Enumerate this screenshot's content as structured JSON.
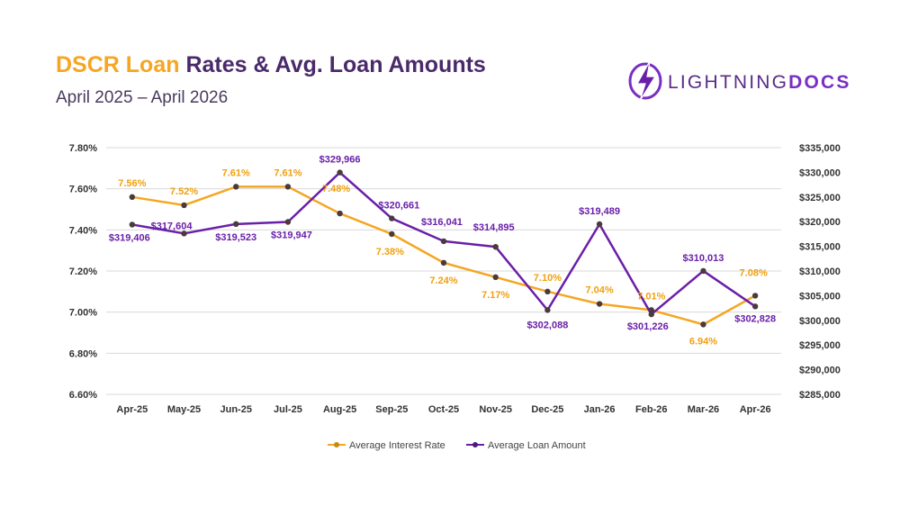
{
  "header": {
    "title_accent": "DSCR Loan",
    "title_rest": "Rates & Avg. Loan Amounts",
    "subtitle": "April 2025 – April 2026"
  },
  "logo": {
    "text_a": "LIGHTNING",
    "text_b": "DOCS",
    "icon": "lightning-bolt-icon"
  },
  "colors": {
    "accent": "#f5a623",
    "rate": "#f5a623",
    "loan": "#6a1fa8",
    "marker": "#4a3a3a"
  },
  "chart_data": {
    "type": "line",
    "categories": [
      "Apr-25",
      "May-25",
      "Jun-25",
      "Jul-25",
      "Aug-25",
      "Sep-25",
      "Oct-25",
      "Nov-25",
      "Dec-25",
      "Jan-26",
      "Feb-26",
      "Mar-26",
      "Apr-26"
    ],
    "series": [
      {
        "name": "Average Interest Rate",
        "axis": "left",
        "values": [
          7.56,
          7.52,
          7.61,
          7.61,
          7.48,
          7.38,
          7.24,
          7.17,
          7.1,
          7.04,
          7.01,
          6.94,
          7.08
        ],
        "labels": [
          "7.56%",
          "7.52%",
          "7.61%",
          "7.61%",
          "7.48%",
          "7.38%",
          "7.24%",
          "7.17%",
          "7.10%",
          "7.04%",
          "7.01%",
          "6.94%",
          "7.08%"
        ]
      },
      {
        "name": "Average Loan Amount",
        "axis": "right",
        "values": [
          319406,
          317604,
          319523,
          319947,
          329966,
          320661,
          316041,
          314895,
          302088,
          319489,
          301226,
          310013,
          302828
        ],
        "labels": [
          "$319,406",
          "$317,604",
          "$319,523",
          "$319,947",
          "$329,966",
          "$320,661",
          "$316,041",
          "$314,895",
          "$302,088",
          "$319,489",
          "$301,226",
          "$310,013",
          "$302,828"
        ]
      }
    ],
    "y_left": {
      "lim": [
        6.6,
        7.8
      ],
      "ticks": [
        6.6,
        6.8,
        7.0,
        7.2,
        7.4,
        7.6,
        7.8
      ],
      "tick_labels": [
        "6.60%",
        "6.80%",
        "7.00%",
        "7.20%",
        "7.40%",
        "7.60%",
        "7.80%"
      ]
    },
    "y_right": {
      "lim": [
        285000,
        335000
      ],
      "ticks": [
        285000,
        290000,
        295000,
        300000,
        305000,
        310000,
        315000,
        320000,
        325000,
        330000,
        335000
      ],
      "tick_labels": [
        "$285,000",
        "$290,000",
        "$295,000",
        "$300,000",
        "$305,000",
        "$310,000",
        "$315,000",
        "$320,000",
        "$325,000",
        "$330,000",
        "$335,000"
      ]
    },
    "grid": true,
    "legend": "bottom-center"
  }
}
